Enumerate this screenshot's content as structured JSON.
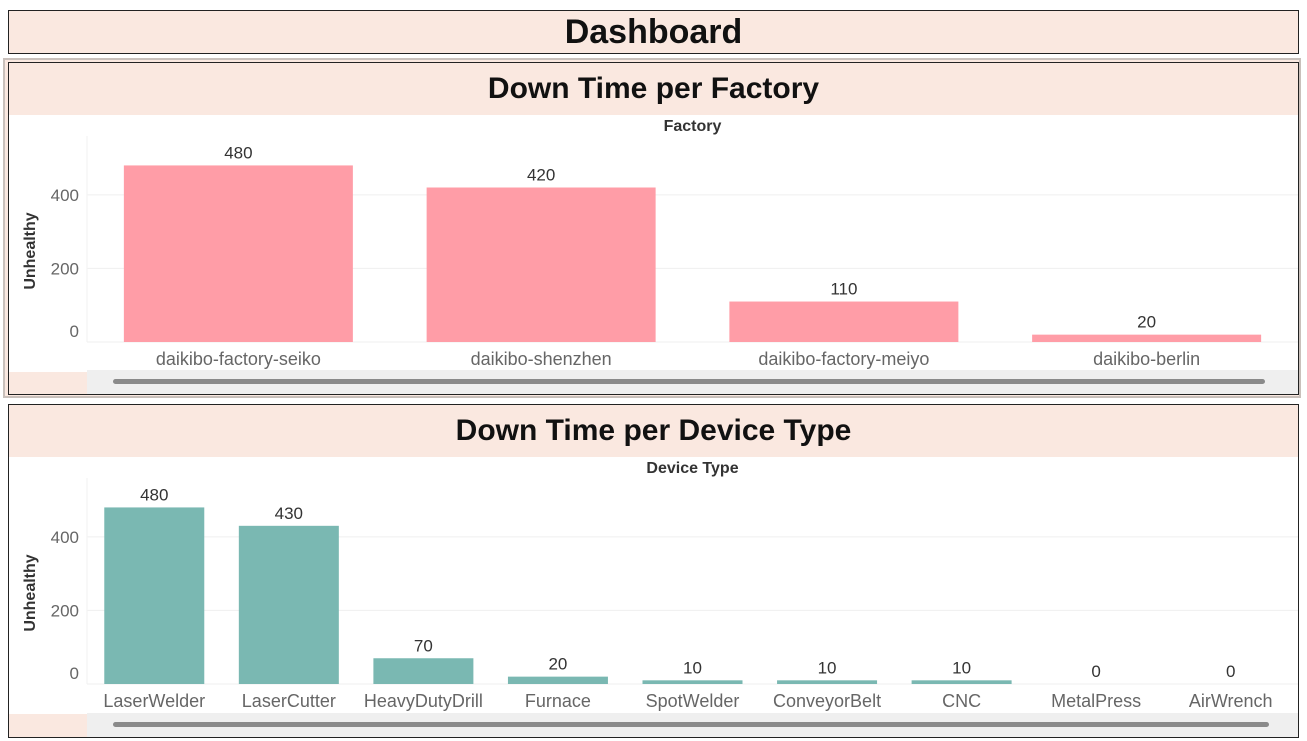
{
  "dashboard_title": "Dashboard",
  "chart_data": [
    {
      "type": "bar",
      "title": "Down Time per Factory",
      "column_header": "Factory",
      "ylabel": "Unhealthy",
      "ylim": [
        0,
        560
      ],
      "yticks": [
        0,
        200,
        400
      ],
      "categories": [
        "daikibo-factory-seiko",
        "daikibo-shenzhen",
        "daikibo-factory-meiyo",
        "daikibo-berlin"
      ],
      "values": [
        480,
        420,
        110,
        20
      ],
      "color": "#ff9da7"
    },
    {
      "type": "bar",
      "title": "Down Time per Device Type",
      "column_header": "Device Type",
      "ylabel": "Unhealthy",
      "ylim": [
        0,
        560
      ],
      "yticks": [
        0,
        200,
        400
      ],
      "categories": [
        "LaserWelder",
        "LaserCutter",
        "HeavyDutyDrill",
        "Furnace",
        "SpotWelder",
        "ConveyorBelt",
        "CNC",
        "MetalPress",
        "AirWrench"
      ],
      "values": [
        480,
        430,
        70,
        20,
        10,
        10,
        10,
        0,
        0
      ],
      "color": "#7ab8b2"
    }
  ]
}
